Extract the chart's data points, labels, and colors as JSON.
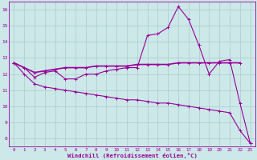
{
  "xlabel": "Windchill (Refroidissement éolien,°C)",
  "x_values": [
    0,
    1,
    2,
    3,
    4,
    5,
    6,
    7,
    8,
    9,
    10,
    11,
    12,
    13,
    14,
    15,
    16,
    17,
    18,
    19,
    20,
    21,
    22,
    23
  ],
  "line1_y": [
    12.7,
    12.4,
    11.8,
    12.1,
    12.2,
    11.7,
    11.7,
    12.0,
    12.0,
    12.2,
    12.3,
    12.4,
    12.4,
    14.4,
    14.5,
    14.9,
    16.2,
    15.4,
    13.8,
    12.0,
    12.8,
    12.9,
    10.2,
    7.7
  ],
  "line2_y": [
    12.7,
    12.4,
    12.1,
    12.2,
    12.3,
    12.4,
    12.4,
    12.4,
    12.5,
    12.5,
    12.5,
    12.5,
    12.6,
    12.6,
    12.6,
    12.6,
    12.7,
    12.7,
    12.7,
    12.7,
    12.7,
    12.7,
    12.7,
    null
  ],
  "line3_y": [
    12.7,
    12.0,
    11.4,
    11.2,
    11.1,
    11.0,
    10.9,
    10.8,
    10.7,
    10.6,
    10.5,
    10.4,
    10.4,
    10.3,
    10.2,
    10.2,
    10.1,
    10.0,
    9.9,
    9.8,
    9.7,
    9.6,
    8.5,
    7.7
  ],
  "color": "#990099",
  "bg_color": "#cce8e8",
  "grid_color": "#aacccc",
  "ylim": [
    7.5,
    16.5
  ],
  "yticks": [
    8,
    9,
    10,
    11,
    12,
    13,
    14,
    15,
    16
  ],
  "xlim": [
    -0.5,
    23.5
  ]
}
